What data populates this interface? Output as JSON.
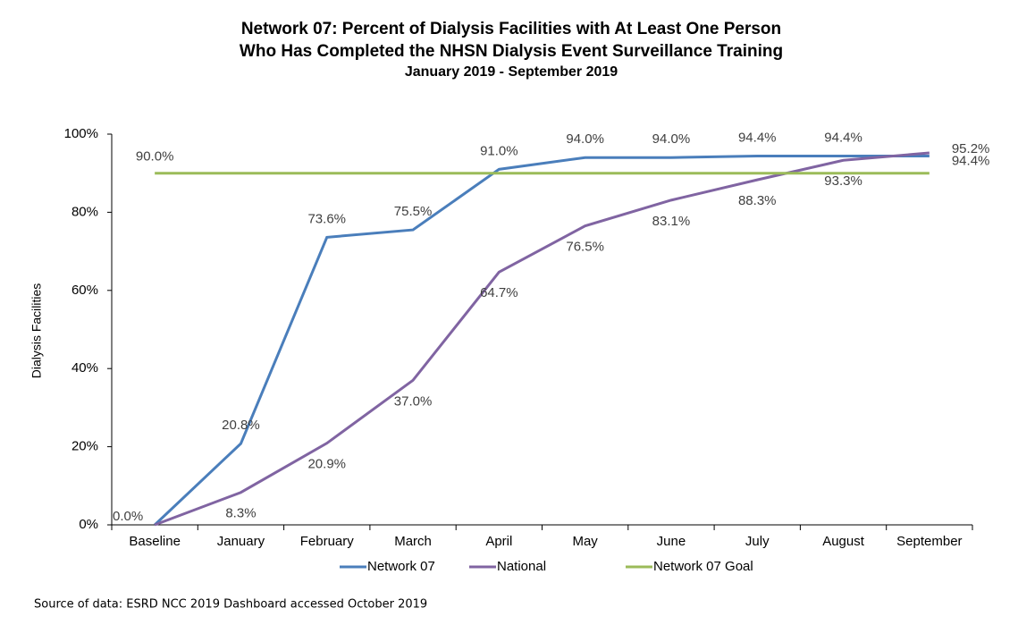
{
  "chart_data": {
    "type": "line",
    "title": [
      "Network 07:  Percent of Dialysis Facilities with At Least One Person",
      "Who Has Completed the NHSN Dialysis Event Surveillance Training"
    ],
    "subtitle": "January 2019 - September 2019",
    "y_label": "Dialysis Facilities",
    "categories": [
      "Baseline",
      "January",
      "February",
      "March",
      "April",
      "May",
      "June",
      "July",
      "August",
      "September"
    ],
    "series": [
      {
        "name": "Network 07",
        "color": "#4a7ebb",
        "values": [
          0,
          20.8,
          73.6,
          75.5,
          91.0,
          94.0,
          94.0,
          94.4,
          94.4,
          94.4
        ],
        "value_labels": [
          "0.0%",
          "20.8%",
          "73.6%",
          "75.5%",
          "91.0%",
          "94.0%",
          "94.0%",
          "94.4%",
          "94.4%",
          "94.4%"
        ]
      },
      {
        "name": "National",
        "color": "#8064a2",
        "values": [
          0,
          8.3,
          20.9,
          37.0,
          64.7,
          76.5,
          83.1,
          88.3,
          93.3,
          95.2
        ],
        "value_labels": [
          null,
          "8.3%",
          "20.9%",
          "37.0%",
          "64.7%",
          "76.5%",
          "83.1%",
          "88.3%",
          "93.3%",
          "95.2%"
        ]
      },
      {
        "name": "Network 07 Goal",
        "color": "#9bbb59",
        "values": [
          90,
          90,
          90,
          90,
          90,
          90,
          90,
          90,
          90,
          90
        ],
        "value_labels": [
          "90.0%",
          null,
          null,
          null,
          null,
          null,
          null,
          null,
          null,
          null
        ]
      }
    ],
    "ylim": [
      0,
      100
    ],
    "yticks": [
      {
        "value": 0,
        "label": "0%"
      },
      {
        "value": 20,
        "label": "20%"
      },
      {
        "value": 40,
        "label": "40%"
      },
      {
        "value": 60,
        "label": "60%"
      },
      {
        "value": 80,
        "label": "80%"
      },
      {
        "value": 100,
        "label": "100%"
      }
    ],
    "legend": "bottom",
    "source": "Source of data:  ESRD NCC 2019 Dashboard accessed October 2019"
  }
}
